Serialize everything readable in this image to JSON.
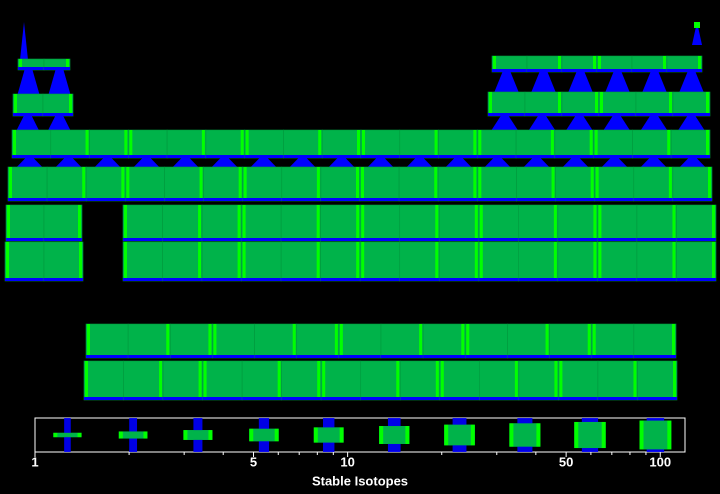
{
  "chart_data": {
    "type": "glyph-legend",
    "x_label": "Stable Isotopes",
    "log_x": true,
    "xlim": [
      1,
      120
    ],
    "xticks": [
      1,
      5,
      10,
      50,
      100
    ],
    "minor_xticks": [
      2,
      3,
      4,
      6,
      7,
      8,
      9,
      20,
      30,
      40,
      60,
      70,
      80,
      90
    ],
    "values": [
      1.27,
      2.06,
      3.32,
      5.4,
      8.7,
      14.1,
      22.8,
      36.9,
      59.6,
      96.5
    ],
    "color": "#00b34a",
    "accent_color": "#0000ff",
    "highlight_color": "#00ff00"
  }
}
